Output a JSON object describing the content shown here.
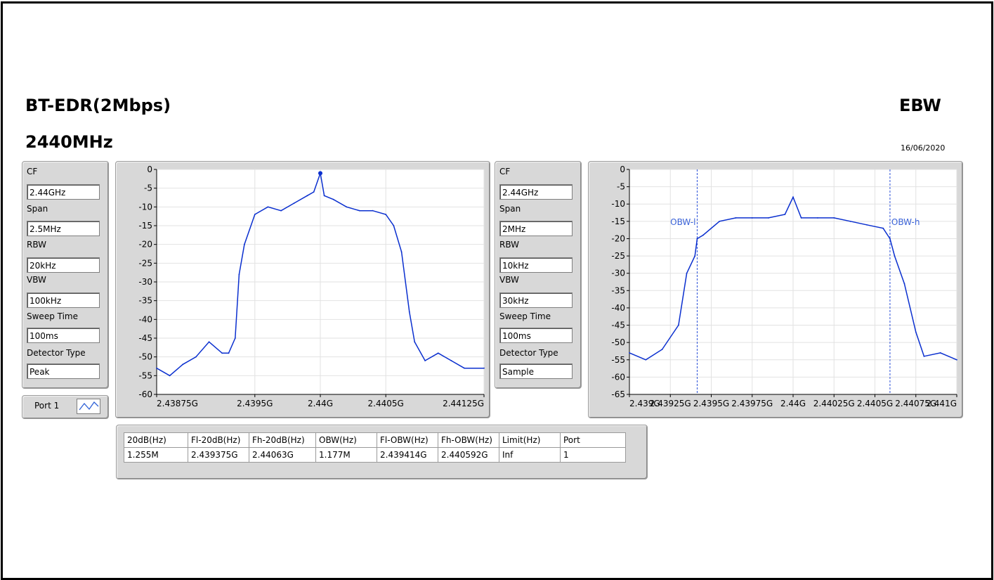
{
  "header": {
    "mode": "BT-EDR(2Mbps)",
    "frequency": "2440MHz",
    "test_name": "EBW",
    "date": "16/06/2020"
  },
  "left_settings": {
    "items": [
      {
        "label": "CF",
        "value": "2.44GHz"
      },
      {
        "label": "Span",
        "value": "2.5MHz"
      },
      {
        "label": "RBW",
        "value": "20kHz"
      },
      {
        "label": "VBW",
        "value": "100kHz"
      },
      {
        "label": "Sweep Time",
        "value": "100ms"
      },
      {
        "label": "Detector Type",
        "value": "Peak"
      }
    ]
  },
  "right_settings": {
    "items": [
      {
        "label": "CF",
        "value": "2.44GHz"
      },
      {
        "label": "Span",
        "value": "2MHz"
      },
      {
        "label": "RBW",
        "value": "10kHz"
      },
      {
        "label": "VBW",
        "value": "30kHz"
      },
      {
        "label": "Sweep Time",
        "value": "100ms"
      },
      {
        "label": "Detector Type",
        "value": "Sample"
      }
    ]
  },
  "port_selector": {
    "label": "Port 1",
    "icon": "waveform-icon"
  },
  "results_table": {
    "headers": [
      "20dB(Hz)",
      "Fl-20dB(Hz)",
      "Fh-20dB(Hz)",
      "OBW(Hz)",
      "Fl-OBW(Hz)",
      "Fh-OBW(Hz)",
      "Limit(Hz)",
      "Port"
    ],
    "rows": [
      [
        "1.255M",
        "2.439375G",
        "2.44063G",
        "1.177M",
        "2.439414G",
        "2.440592G",
        "Inf",
        "1"
      ]
    ]
  },
  "chart_data": [
    {
      "type": "line",
      "xlim": [
        2438750000,
        2441250000
      ],
      "ylim": [
        -60,
        0
      ],
      "x_tick_labels": [
        "2.43875G",
        "2.4395G",
        "2.44G",
        "2.4405G",
        "2.44125G"
      ],
      "x_tick_values": [
        2438750000,
        2439500000,
        2440000000,
        2440500000,
        2441250000
      ],
      "y_tick_labels": [
        "0",
        "-5",
        "-10",
        "-15",
        "-20",
        "-25",
        "-30",
        "-35",
        "-40",
        "-45",
        "-50",
        "-55",
        "-60"
      ],
      "grid": true,
      "line_color": "#0a2fcf",
      "series": [
        {
          "x": [
            2438750000,
            2438850000,
            2438950000,
            2439050000,
            2439150000,
            2439250000,
            2439300000,
            2439350000,
            2439380000,
            2439420000,
            2439500000,
            2439600000,
            2439700000,
            2439800000,
            2439900000,
            2439950000,
            2440000000,
            2440030000,
            2440100000,
            2440200000,
            2440300000,
            2440400000,
            2440500000,
            2440560000,
            2440620000,
            2440680000,
            2440720000,
            2440800000,
            2440900000,
            2441000000,
            2441100000,
            2441250000
          ],
          "y": [
            -53,
            -55,
            -52,
            -50,
            -46,
            -49,
            -49,
            -45,
            -28,
            -20,
            -12,
            -10,
            -11,
            -9,
            -7,
            -6,
            -1,
            -7,
            -8,
            -10,
            -11,
            -11,
            -12,
            -15,
            -22,
            -38,
            -46,
            -51,
            -49,
            -51,
            -53,
            -53
          ]
        }
      ],
      "markers": [
        {
          "x": 2440000000,
          "y": -1
        }
      ]
    },
    {
      "type": "line",
      "xlim": [
        2439000000,
        2441000000
      ],
      "ylim": [
        -65,
        0
      ],
      "x_tick_labels": [
        "2.439G",
        "2.43925G",
        "2.4395G",
        "2.43975G",
        "2.44G",
        "2.44025G",
        "2.4405G",
        "2.44075G",
        "2.441G"
      ],
      "x_tick_values": [
        2439000000,
        2439250000,
        2439500000,
        2439750000,
        2440000000,
        2440250000,
        2440500000,
        2440750000,
        2441000000
      ],
      "y_tick_labels": [
        "0",
        "-5",
        "-10",
        "-15",
        "-20",
        "-25",
        "-30",
        "-35",
        "-40",
        "-45",
        "-50",
        "-55",
        "-60",
        "-65"
      ],
      "grid": true,
      "line_color": "#0a2fcf",
      "series": [
        {
          "x": [
            2439000000,
            2439100000,
            2439200000,
            2439300000,
            2439350000,
            2439400000,
            2439414000,
            2439450000,
            2439550000,
            2439650000,
            2439750000,
            2439850000,
            2439950000,
            2440000000,
            2440050000,
            2440150000,
            2440250000,
            2440350000,
            2440450000,
            2440550000,
            2440592000,
            2440620000,
            2440680000,
            2440750000,
            2440800000,
            2440900000,
            2441000000
          ],
          "y": [
            -53,
            -55,
            -52,
            -45,
            -30,
            -25,
            -20,
            -19,
            -15,
            -14,
            -14,
            -14,
            -13,
            -8,
            -14,
            -14,
            -14,
            -15,
            -16,
            -17,
            -20,
            -25,
            -33,
            -47,
            -54,
            -53,
            -55
          ]
        }
      ],
      "vertical_markers": [
        {
          "x": 2439414000,
          "label": "OBW-l"
        },
        {
          "x": 2440592000,
          "label": "OBW-h"
        }
      ]
    }
  ]
}
